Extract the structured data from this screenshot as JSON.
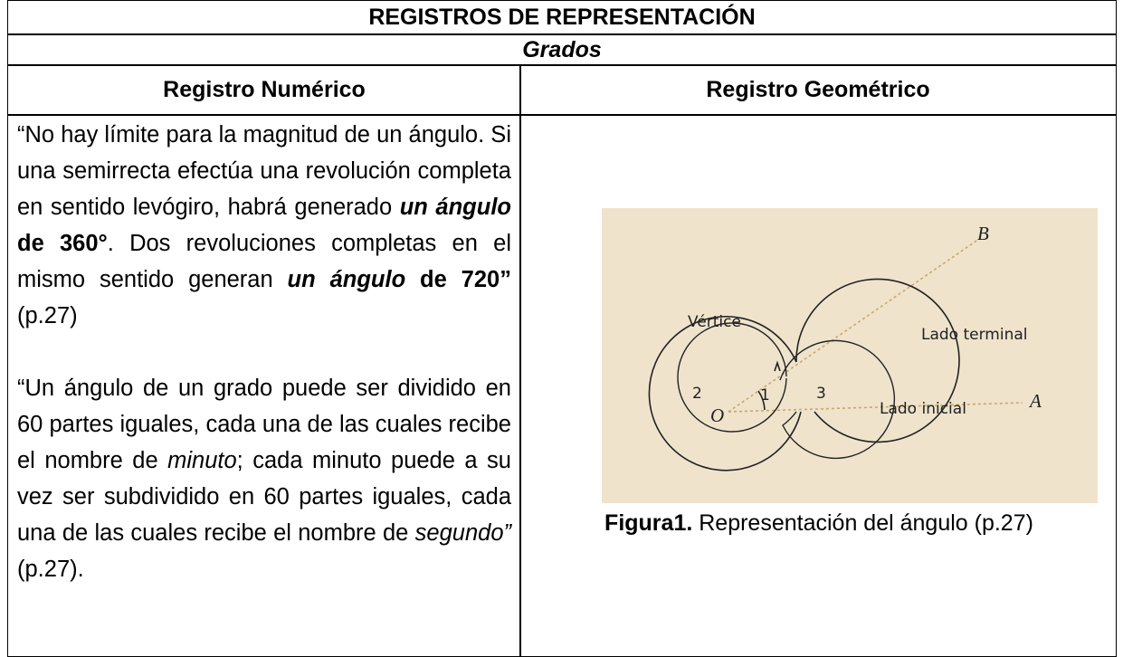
{
  "table": {
    "title": "REGISTROS DE REPRESENTACIÓN",
    "subtitle": "Grados",
    "headers": [
      "Registro Numérico",
      "Registro Geométrico"
    ],
    "left": {
      "paragraph_1": [
        "“No hay límite para la magnitud de un ángulo. Si una semirrecta efectúa una revolución completa en sentido levógiro, habrá generado ",
        "un ángulo",
        " de 360°",
        ". Dos revoluciones completas en el mismo sentido generan ",
        "un ángulo",
        " de 720”",
        " (p.27)"
      ],
      "paragraph_2": [
        "“Un ángulo de un grado puede ser dividido en 60 partes iguales, cada una de las cuales recibe el nombre de ",
        "minuto",
        "; cada minuto puede a su vez ser subdividido en 60 partes iguales, cada una de las cuales recibe el nombre de ",
        "segundo”",
        " (p.27)."
      ]
    },
    "figure": {
      "labels": {
        "B": "B",
        "terminal": "Lado terminal",
        "vertex": "Vértice",
        "two": "2",
        "one": "1",
        "three": "3",
        "O": "O",
        "initial": "Lado inicial",
        "A": "A"
      },
      "caption_bold": "Figura1.",
      "caption": " Representación del ángulo (p.27)"
    }
  }
}
